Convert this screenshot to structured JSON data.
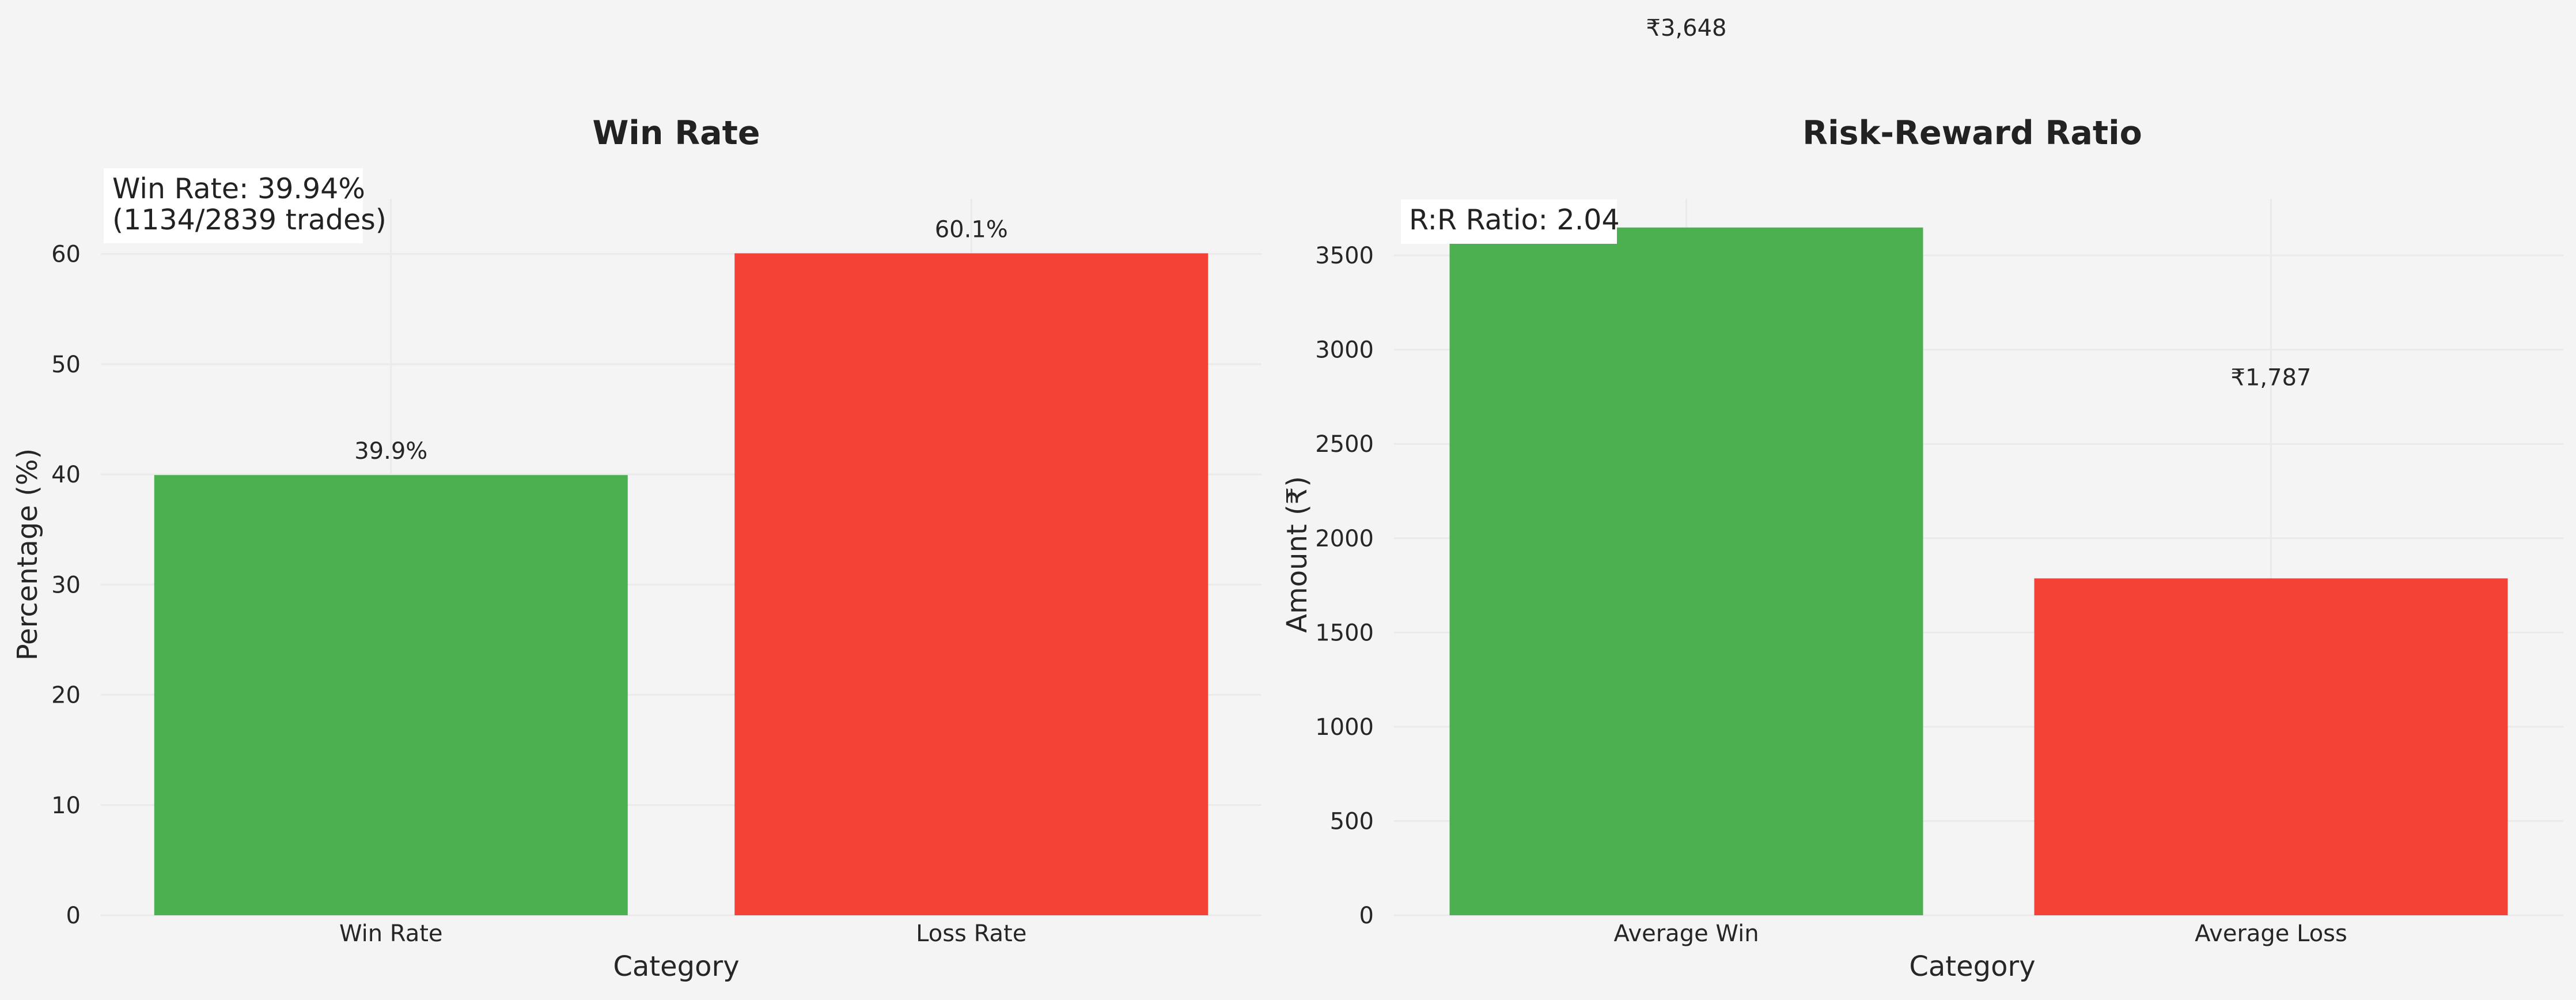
{
  "chart_data": [
    {
      "type": "bar",
      "title": "Win Rate",
      "xlabel": "Category",
      "ylabel": "Percentage (%)",
      "categories": [
        "Win Rate",
        "Loss Rate"
      ],
      "values": [
        39.94,
        60.06
      ],
      "data_labels": [
        "39.9%",
        "60.1%"
      ],
      "colors": [
        "#4caf50",
        "#f44336"
      ],
      "ylim": [
        0,
        65
      ],
      "yticks": [
        0,
        10,
        20,
        30,
        40,
        50,
        60
      ],
      "grid": true,
      "annotation": [
        "Win Rate: 39.94%",
        "(1134/2839 trades)"
      ]
    },
    {
      "type": "bar",
      "title": "Risk-Reward Ratio",
      "xlabel": "Category",
      "ylabel": "Amount (₹)",
      "categories": [
        "Average Win",
        "Average Loss"
      ],
      "values": [
        3648,
        1787
      ],
      "data_labels": [
        "₹3,648",
        "₹1,787"
      ],
      "colors": [
        "#4caf50",
        "#f44336"
      ],
      "ylim": [
        0,
        3800
      ],
      "yticks": [
        0,
        500,
        1000,
        1500,
        2000,
        2500,
        3000,
        3500
      ],
      "grid": true,
      "annotation": [
        "R:R Ratio: 2.04"
      ]
    }
  ]
}
